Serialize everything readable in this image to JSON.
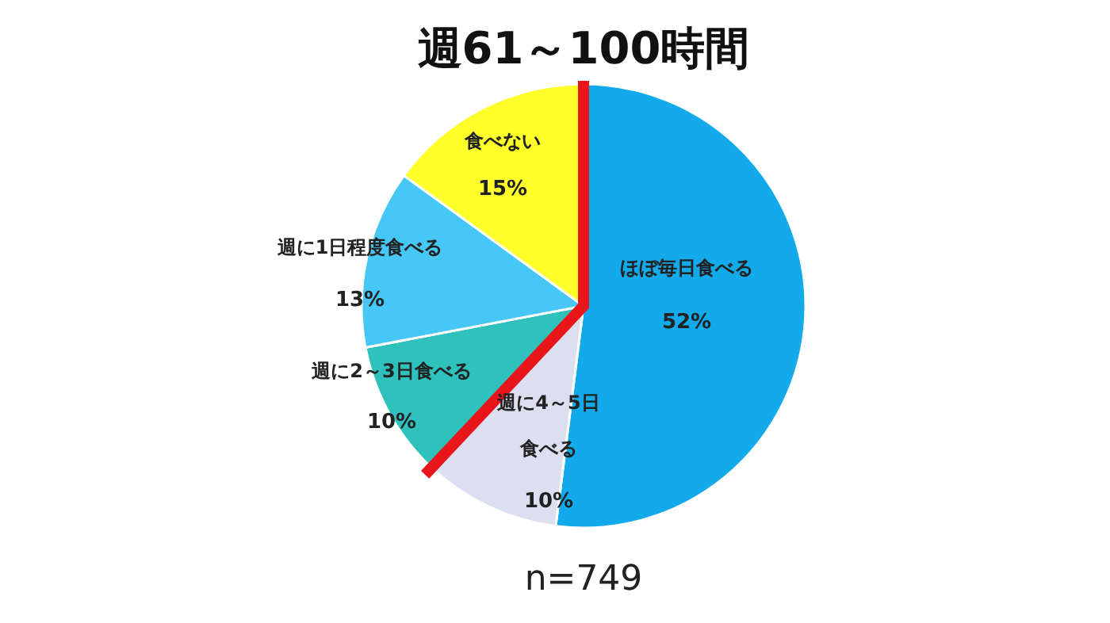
{
  "chart_data": {
    "type": "pie",
    "title": "週61～100時間",
    "categories": [
      "ほぼ毎日食べる",
      "週に4～5日食べる",
      "週に2～3日食べる",
      "週に1日程度食べる",
      "食べない"
    ],
    "values": [
      52,
      10,
      10,
      13,
      15
    ],
    "value_labels": [
      "52%",
      "10%",
      "10%",
      "13%",
      "15%"
    ],
    "colors": [
      "#12aaeb",
      "#dcdff0",
      "#2fc2bd",
      "#47c7f5",
      "#ffff2a"
    ],
    "annotations": [
      "n=749"
    ]
  }
}
